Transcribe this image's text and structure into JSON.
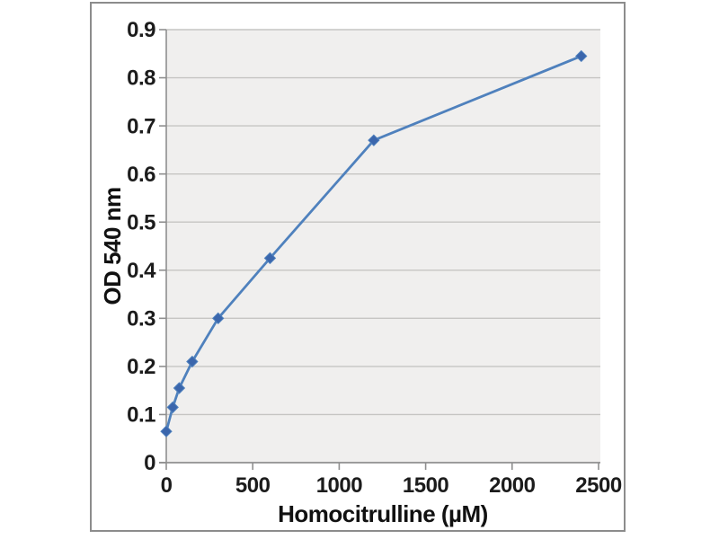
{
  "chart_data": {
    "type": "line",
    "title": "",
    "xlabel": "Homocitrulline (µM)",
    "ylabel": "OD 540 nm",
    "x": [
      0,
      37.5,
      75,
      150,
      300,
      600,
      1200,
      2400
    ],
    "y": [
      0.065,
      0.115,
      0.155,
      0.21,
      0.3,
      0.425,
      0.67,
      0.845
    ],
    "xlim": [
      0,
      2500
    ],
    "ylim": [
      0,
      0.9
    ],
    "x_tick_values": [
      0,
      500,
      1000,
      1500,
      2000,
      2500
    ],
    "x_tick_labels": [
      "0",
      "500",
      "1000",
      "1500",
      "2000",
      "2500"
    ],
    "y_tick_values": [
      0,
      0.1,
      0.2,
      0.3,
      0.4,
      0.5,
      0.6,
      0.7,
      0.8,
      0.9
    ],
    "y_tick_labels": [
      "0",
      "0.1",
      "0.2",
      "0.3",
      "0.4",
      "0.5",
      "0.6",
      "0.7",
      "0.8",
      "0.9"
    ],
    "grid": "horizontal",
    "legend": "none",
    "marker": "diamond",
    "colors": {
      "line": "#4f81bd",
      "marker_fill": "#3b66ac",
      "plot_background": "#f0efee",
      "gridline": "#c6c5c3",
      "axis_line": "#8f8f8f",
      "tick_mark": "#8f8f8f",
      "tick_text": "#1c1c1c",
      "frame_border": "#8c8c8c",
      "page_background": "#ffffff"
    }
  }
}
